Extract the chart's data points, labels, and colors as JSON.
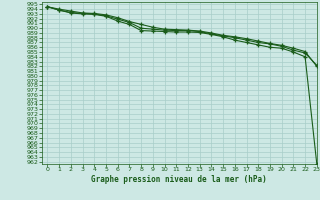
{
  "title": "Graphe pression niveau de la mer (hPa)",
  "bg_color": "#cde8e4",
  "grid_color": "#a8cec9",
  "line_color": "#1a5c1a",
  "xlim": [
    -0.5,
    23
  ],
  "ylim": [
    961.5,
    995.5
  ],
  "yticks": [
    962,
    963,
    964,
    965,
    966,
    967,
    968,
    969,
    970,
    971,
    972,
    973,
    974,
    975,
    976,
    977,
    978,
    979,
    980,
    981,
    982,
    983,
    984,
    985,
    986,
    987,
    988,
    989,
    990,
    991,
    992,
    993,
    994,
    995
  ],
  "xticks": [
    0,
    1,
    2,
    3,
    4,
    5,
    6,
    7,
    8,
    9,
    10,
    11,
    12,
    13,
    14,
    15,
    16,
    17,
    18,
    19,
    20,
    21,
    22,
    23
  ],
  "series": [
    [
      994.5,
      993.8,
      993.2,
      993.0,
      992.9,
      992.5,
      991.5,
      990.8,
      989.5,
      989.4,
      989.3,
      989.2,
      989.2,
      989.1,
      988.7,
      988.2,
      987.5,
      987.0,
      986.5,
      986.0,
      985.8,
      985.0,
      984.0,
      961.5
    ],
    [
      994.5,
      993.8,
      993.3,
      993.1,
      993.0,
      992.6,
      991.9,
      991.2,
      990.0,
      989.8,
      989.6,
      989.5,
      989.5,
      989.3,
      988.8,
      988.4,
      988.0,
      987.5,
      987.0,
      986.7,
      986.2,
      985.4,
      984.8,
      982.2
    ],
    [
      994.5,
      994.0,
      993.6,
      993.2,
      993.1,
      992.8,
      992.2,
      991.4,
      990.8,
      990.2,
      989.8,
      989.7,
      989.6,
      989.4,
      989.0,
      988.5,
      988.2,
      987.8,
      987.3,
      986.8,
      986.4,
      985.8,
      985.1,
      982.0
    ]
  ]
}
